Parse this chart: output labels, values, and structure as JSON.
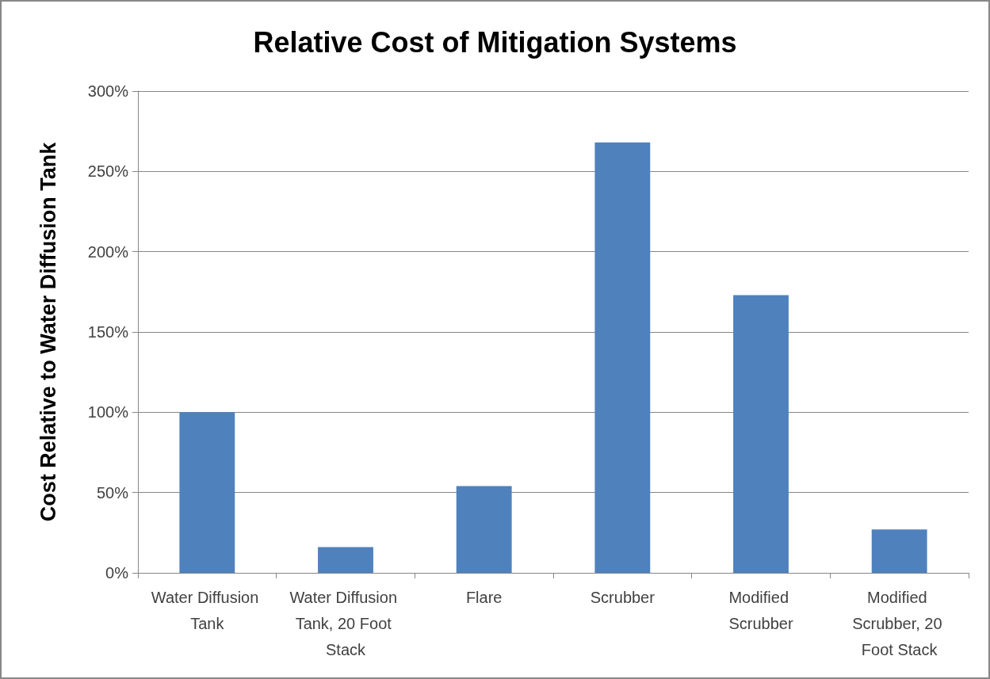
{
  "chart_data": {
    "type": "bar",
    "title": "Relative Cost of Mitigation Systems",
    "ylabel": "Cost Relative to Water Diffusion Tank",
    "categories": [
      "Water Diffusion Tank",
      "Water Diffusion Tank, 20 Foot Stack",
      "Flare",
      "Scrubber",
      "Modified Scrubber",
      "Modified Scrubber, 20 Foot Stack"
    ],
    "values": [
      100,
      16,
      54,
      268,
      173,
      27
    ],
    "color": "#4f81bd",
    "ylim": [
      0,
      300
    ],
    "yticks": [
      {
        "value": 0,
        "label": "0%"
      },
      {
        "value": 50,
        "label": "50%"
      },
      {
        "value": 100,
        "label": "100%"
      },
      {
        "value": 150,
        "label": "150%"
      },
      {
        "value": 200,
        "label": "200%"
      },
      {
        "value": 250,
        "label": "250%"
      },
      {
        "value": 300,
        "label": "300%"
      }
    ],
    "grid": "y"
  }
}
